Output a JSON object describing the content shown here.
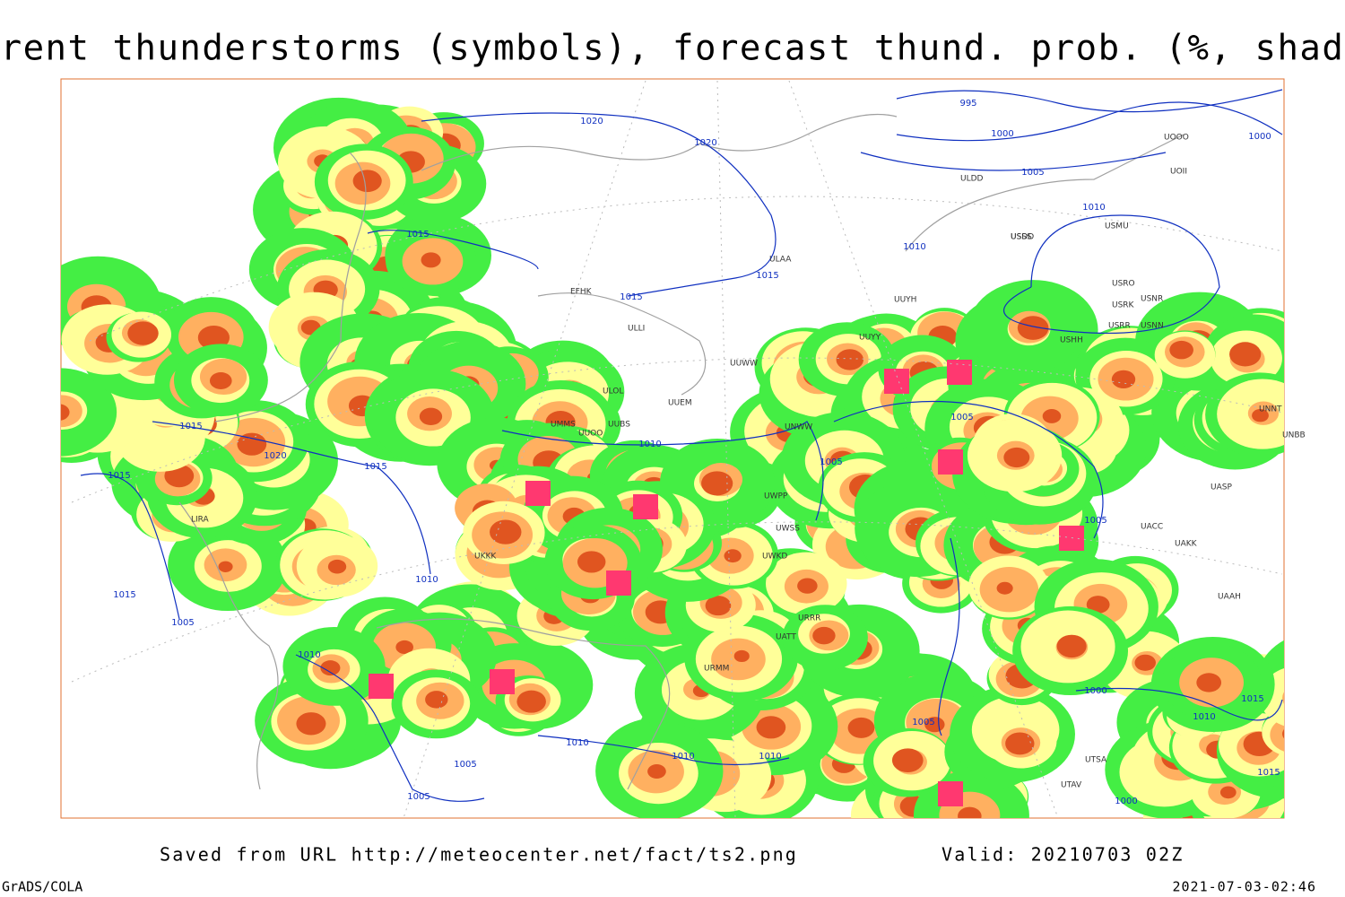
{
  "header": {
    "title": "Current thunderstorms (symbols), forecast thund. prob. (%, shaded)"
  },
  "footer": {
    "source": "Saved from URL http://meteocenter.net/fact/ts2.png",
    "valid": "Valid: 20210703 02Z",
    "software": "GrADS/COLA",
    "timestamp": "2021-07-03-02:46"
  },
  "isobar_labels": [
    "1020",
    "1020",
    "995",
    "1000",
    "1005",
    "1010",
    "1010",
    "1015",
    "1015",
    "1015",
    "1000",
    "1015",
    "1020",
    "1015",
    "1015",
    "1010",
    "1005",
    "1005",
    "1005",
    "1010",
    "1015",
    "1005",
    "1010",
    "1010",
    "1005",
    "1005",
    "1010",
    "1010",
    "1005",
    "1000",
    "1010",
    "1015",
    "1015",
    "1000"
  ],
  "stations": [
    "UOOO",
    "UOII",
    "ULDD",
    "USDD",
    "USMU",
    "USRO",
    "USRK",
    "USNR",
    "USRR",
    "USNN",
    "USHH",
    "UUYY",
    "UUYH",
    "ULAA",
    "ULLI",
    "EFHK",
    "ULOL",
    "UUEM",
    "UMMS",
    "UUWW",
    "UUBS",
    "UWPP",
    "UWSS",
    "UWKD",
    "UNNT",
    "UNBB",
    "UASP",
    "UACC",
    "UAKK",
    "UAAH",
    "UTSA",
    "UTAV",
    "URRR",
    "URMM",
    "LIRA",
    "UKKK",
    "UUOO",
    "USSS",
    "UNWW",
    "UATT"
  ]
}
